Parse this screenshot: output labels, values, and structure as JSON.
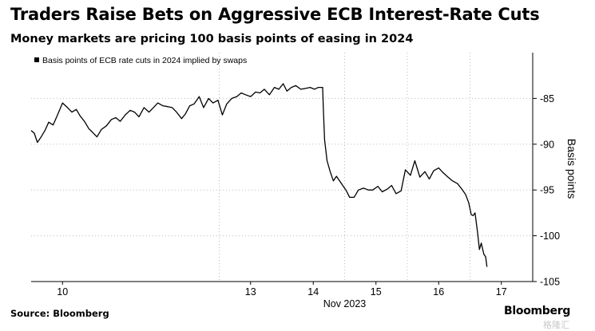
{
  "header": {
    "title": "Traders Raise Bets on Aggressive ECB Interest-Rate Cuts",
    "subtitle": "Money markets are pricing 100 basis points of easing in 2024"
  },
  "footer": {
    "source": "Source: Bloomberg",
    "brand": "Bloomberg",
    "watermark": "格隆汇"
  },
  "chart_data": {
    "type": "line",
    "xlabel": "Nov 2023",
    "ylabel": "Basis points",
    "yaxis_position": "right",
    "legend_position": "top-left",
    "ylim": [
      -105,
      -80
    ],
    "xlim": [
      9.5,
      17.5
    ],
    "yticks": [
      -85,
      -90,
      -95,
      -100,
      -105
    ],
    "xticks": [
      10,
      13,
      14,
      15,
      16,
      17
    ],
    "xtick_labels": [
      "10",
      "13",
      "14",
      "15",
      "16",
      "17"
    ],
    "grid": "vertical dashed day separators",
    "line_color": "#000000",
    "series": [
      {
        "name": "Basis points of ECB rate cuts in 2024 implied by swaps",
        "x": [
          9.5,
          9.55,
          9.6,
          9.65,
          9.72,
          9.78,
          9.85,
          9.92,
          10.0,
          10.08,
          10.15,
          10.22,
          10.28,
          10.35,
          10.42,
          10.48,
          10.55,
          10.62,
          10.7,
          10.78,
          10.85,
          10.92,
          11.0,
          11.08,
          11.15,
          11.22,
          11.3,
          11.38,
          11.45,
          11.52,
          11.6,
          11.68,
          11.75,
          11.82,
          11.9,
          11.96,
          12.03,
          12.1,
          12.18,
          12.25,
          12.33,
          12.4,
          12.48,
          12.55,
          12.62,
          12.7,
          12.78,
          12.85,
          12.92,
          13.0,
          13.08,
          13.15,
          13.22,
          13.3,
          13.38,
          13.45,
          13.52,
          13.58,
          13.65,
          13.72,
          13.8,
          13.88,
          13.95,
          14.02,
          14.08,
          14.15,
          14.16,
          14.18,
          14.22,
          14.27,
          14.32,
          14.37,
          14.42,
          14.47,
          14.52,
          14.58,
          14.65,
          14.72,
          14.8,
          14.88,
          14.95,
          15.03,
          15.1,
          15.18,
          15.25,
          15.32,
          15.4,
          15.47,
          15.55,
          15.62,
          15.7,
          15.78,
          15.85,
          15.92,
          16.0,
          16.07,
          16.15,
          16.22,
          16.3,
          16.37,
          16.43,
          16.48,
          16.52,
          16.55,
          16.58,
          16.62,
          16.65,
          16.68,
          16.72,
          16.75,
          16.77
        ],
        "values": [
          -88.5,
          -88.8,
          -89.8,
          -89.3,
          -88.5,
          -87.6,
          -87.9,
          -86.8,
          -85.5,
          -86.0,
          -86.5,
          -86.2,
          -86.9,
          -87.5,
          -88.3,
          -88.7,
          -89.2,
          -88.4,
          -88.0,
          -87.3,
          -87.1,
          -87.5,
          -86.8,
          -86.3,
          -86.5,
          -87.0,
          -86.0,
          -86.5,
          -86.0,
          -85.5,
          -85.8,
          -85.9,
          -86.0,
          -86.5,
          -87.2,
          -86.7,
          -85.8,
          -85.6,
          -84.8,
          -86.0,
          -85.0,
          -85.5,
          -85.2,
          -86.8,
          -85.6,
          -85.0,
          -84.8,
          -84.4,
          -84.6,
          -84.8,
          -84.3,
          -84.4,
          -84.0,
          -84.6,
          -83.8,
          -84.0,
          -83.4,
          -84.2,
          -83.8,
          -83.6,
          -84.0,
          -83.9,
          -83.8,
          -84.0,
          -83.8,
          -83.8,
          -86.0,
          -89.5,
          -91.8,
          -93.0,
          -94.0,
          -93.5,
          -94.0,
          -94.5,
          -95.0,
          -95.8,
          -95.8,
          -95.0,
          -94.8,
          -95.0,
          -95.0,
          -94.6,
          -95.2,
          -94.9,
          -94.5,
          -95.4,
          -95.1,
          -92.8,
          -93.4,
          -91.8,
          -93.6,
          -93.0,
          -93.8,
          -92.9,
          -92.6,
          -93.1,
          -93.6,
          -94.0,
          -94.3,
          -94.9,
          -95.5,
          -96.4,
          -97.7,
          -97.8,
          -97.5,
          -99.6,
          -101.5,
          -100.8,
          -102.0,
          -102.3,
          -103.4
        ]
      }
    ]
  }
}
